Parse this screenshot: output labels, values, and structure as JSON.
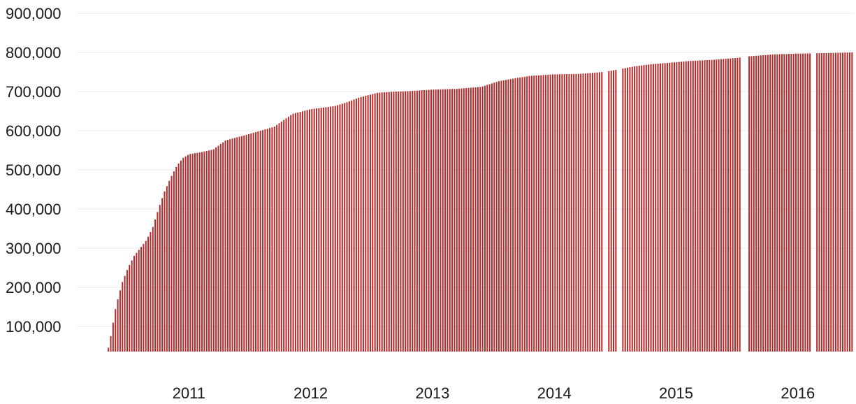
{
  "chart_data": {
    "type": "bar",
    "title": "",
    "xlabel": "",
    "ylabel": "",
    "ylim": [
      0,
      900000
    ],
    "grid": true,
    "legend": "none",
    "colors": {
      "bar": "#b22a2a"
    },
    "y_ticks": [
      {
        "value": 100000,
        "label": "100,000"
      },
      {
        "value": 200000,
        "label": "200,000"
      },
      {
        "value": 300000,
        "label": "300,000"
      },
      {
        "value": 400000,
        "label": "400,000"
      },
      {
        "value": 500000,
        "label": "500,000"
      },
      {
        "value": 600000,
        "label": "600,000"
      },
      {
        "value": 700000,
        "label": "700,000"
      },
      {
        "value": 800000,
        "label": "800,000"
      },
      {
        "value": 900000,
        "label": "900,000"
      }
    ],
    "x_ticks": [
      {
        "value": 2011.2,
        "label": "2011"
      },
      {
        "value": 2012.2,
        "label": "2012"
      },
      {
        "value": 2013.2,
        "label": "2013"
      },
      {
        "value": 2014.2,
        "label": "2014"
      },
      {
        "value": 2015.2,
        "label": "2015"
      },
      {
        "value": 2016.2,
        "label": "2016"
      }
    ],
    "xlim": [
      2010.28,
      2016.66
    ],
    "bar_interval": 0.0192,
    "gaps": [
      [
        2014.6,
        2014.63
      ],
      [
        2014.72,
        2014.75
      ],
      [
        2015.73,
        2015.79
      ],
      [
        2016.31,
        2016.34
      ]
    ],
    "series": [
      {
        "x": [
          2010.52,
          2010.55,
          2010.6,
          2010.65,
          2010.7,
          2010.75,
          2010.8,
          2010.85,
          2010.9,
          2010.95,
          2011.0,
          2011.05,
          2011.1,
          2011.15,
          2011.2,
          2011.3,
          2011.4,
          2011.5,
          2011.7,
          2011.9,
          2012.05,
          2012.2,
          2012.4,
          2012.5,
          2012.6,
          2012.75,
          2012.9,
          2013.0,
          2013.1,
          2013.2,
          2013.4,
          2013.6,
          2013.75,
          2013.9,
          2014.0,
          2014.1,
          2014.2,
          2014.4,
          2014.6,
          2014.7,
          2014.85,
          2015.0,
          2015.2,
          2015.3,
          2015.5,
          2015.7,
          2015.8,
          2016.0,
          2016.2,
          2016.4,
          2016.66
        ],
        "values": [
          20000,
          60000,
          150000,
          210000,
          250000,
          280000,
          300000,
          320000,
          350000,
          400000,
          445000,
          480000,
          510000,
          530000,
          540000,
          545000,
          552000,
          575000,
          592000,
          610000,
          643000,
          655000,
          663000,
          673000,
          685000,
          697000,
          700000,
          701000,
          703000,
          705000,
          707000,
          712000,
          727000,
          735000,
          740000,
          742000,
          744000,
          745000,
          750000,
          755000,
          764000,
          770000,
          775000,
          778000,
          781000,
          786000,
          790000,
          795000,
          797000,
          798000,
          800000
        ]
      }
    ]
  }
}
